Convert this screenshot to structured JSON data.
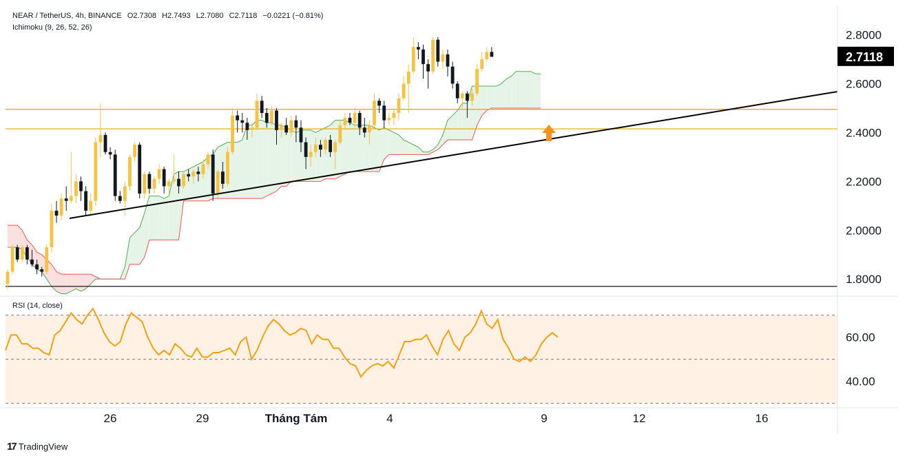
{
  "header": {
    "symbol": "NEAR / TetherUS, 4h, BINANCE",
    "open": "O2.7308",
    "high": "H2.7493",
    "low": "L2.7080",
    "close": "C2.7118",
    "change": "−0.0221 (−0.81%)",
    "indicator": "Ichimoku (9, 26, 52, 26)",
    "rsi_label": "RSI (14, close)"
  },
  "brand": {
    "logo": "17",
    "name": "TradingView"
  },
  "colors": {
    "up": "#f5c242",
    "down": "#131722",
    "leading_a": "#4caf50",
    "leading_b": "#ef5350",
    "cloud_green": "#e6f4e7",
    "cloud_red": "#fbe0e0",
    "hline": "#e0a500",
    "rsi": "#f5a00c",
    "rsi_band": "#fff1e3",
    "arrow": "#f7931a",
    "trend": "#000000",
    "price_tag_bg": "#000000",
    "price_tag_fg": "#ffffff"
  },
  "chart_data": {
    "type": "candlestick",
    "interval": "4h",
    "price_axis": {
      "ticks": [
        "2.8000",
        "2.6000",
        "2.4000",
        "2.2000",
        "2.0000",
        "1.8000"
      ],
      "ylim": [
        1.73,
        2.92
      ]
    },
    "last_price": "2.7118",
    "time_axis": [
      "26",
      "29",
      "Tháng Tám",
      "4",
      "9",
      "12",
      "16"
    ],
    "horizontal_levels": [
      2.495,
      2.415,
      1.77
    ],
    "trendline": {
      "from": [
        "Jul 24 12:00",
        2.0
      ],
      "to": [
        "Aug 18 16:00",
        2.545
      ]
    },
    "signal_arrow": {
      "time": "Aug 9 04:00",
      "price": 2.37,
      "direction": "up"
    },
    "candles_ohlc": [
      [
        1.78,
        1.84,
        1.76,
        1.83
      ],
      [
        1.83,
        1.94,
        1.82,
        1.93
      ],
      [
        1.93,
        1.94,
        1.87,
        1.88
      ],
      [
        1.88,
        1.94,
        1.87,
        1.93
      ],
      [
        1.93,
        1.94,
        1.86,
        1.88
      ],
      [
        1.88,
        1.92,
        1.85,
        1.86
      ],
      [
        1.86,
        1.88,
        1.82,
        1.84
      ],
      [
        1.84,
        1.85,
        1.81,
        1.83
      ],
      [
        1.83,
        1.94,
        1.82,
        1.93
      ],
      [
        1.93,
        2.11,
        1.91,
        2.08
      ],
      [
        2.08,
        2.12,
        2.03,
        2.06
      ],
      [
        2.06,
        2.15,
        2.04,
        2.13
      ],
      [
        2.13,
        2.18,
        2.08,
        2.12
      ],
      [
        2.12,
        2.32,
        2.11,
        2.14
      ],
      [
        2.14,
        2.23,
        2.11,
        2.2
      ],
      [
        2.2,
        2.22,
        2.12,
        2.16
      ],
      [
        2.16,
        2.18,
        2.06,
        2.08
      ],
      [
        2.08,
        2.15,
        2.06,
        2.12
      ],
      [
        2.12,
        2.38,
        2.1,
        2.36
      ],
      [
        2.36,
        2.52,
        2.3,
        2.39
      ],
      [
        2.39,
        2.4,
        2.31,
        2.32
      ],
      [
        2.32,
        2.34,
        2.29,
        2.31
      ],
      [
        2.31,
        2.33,
        2.12,
        2.14
      ],
      [
        2.14,
        2.16,
        2.11,
        2.12
      ],
      [
        2.12,
        2.2,
        2.06,
        2.18
      ],
      [
        2.18,
        2.31,
        2.16,
        2.3
      ],
      [
        2.3,
        2.36,
        2.28,
        2.35
      ],
      [
        2.35,
        2.36,
        2.13,
        2.15
      ],
      [
        2.15,
        2.24,
        2.13,
        2.23
      ],
      [
        2.23,
        2.24,
        2.15,
        2.17
      ],
      [
        2.17,
        2.22,
        2.15,
        2.21
      ],
      [
        2.21,
        2.27,
        2.19,
        2.25
      ],
      [
        2.25,
        2.26,
        2.15,
        2.18
      ],
      [
        2.18,
        2.21,
        2.14,
        2.2
      ],
      [
        2.2,
        2.31,
        2.19,
        2.21
      ],
      [
        2.21,
        2.24,
        2.15,
        2.18
      ],
      [
        2.18,
        2.24,
        2.17,
        2.23
      ],
      [
        2.23,
        2.25,
        2.2,
        2.22
      ],
      [
        2.22,
        2.25,
        2.19,
        2.24
      ],
      [
        2.24,
        2.26,
        2.2,
        2.23
      ],
      [
        2.23,
        2.29,
        2.21,
        2.27
      ],
      [
        2.27,
        2.32,
        2.25,
        2.31
      ],
      [
        2.31,
        2.33,
        2.12,
        2.15
      ],
      [
        2.15,
        2.25,
        2.13,
        2.24
      ],
      [
        2.24,
        2.28,
        2.17,
        2.19
      ],
      [
        2.19,
        2.34,
        2.18,
        2.32
      ],
      [
        2.32,
        2.5,
        2.31,
        2.47
      ],
      [
        2.47,
        2.49,
        2.4,
        2.45
      ],
      [
        2.45,
        2.48,
        2.4,
        2.44
      ],
      [
        2.44,
        2.46,
        2.37,
        2.41
      ],
      [
        2.41,
        2.44,
        2.38,
        2.42
      ],
      [
        2.42,
        2.56,
        2.41,
        2.53
      ],
      [
        2.53,
        2.55,
        2.46,
        2.48
      ],
      [
        2.48,
        2.5,
        2.42,
        2.44
      ],
      [
        2.44,
        2.51,
        2.43,
        2.49
      ],
      [
        2.49,
        2.5,
        2.35,
        2.41
      ],
      [
        2.41,
        2.44,
        2.38,
        2.43
      ],
      [
        2.43,
        2.46,
        2.39,
        2.4
      ],
      [
        2.4,
        2.47,
        2.38,
        2.45
      ],
      [
        2.45,
        2.47,
        2.36,
        2.42
      ],
      [
        2.42,
        2.45,
        2.32,
        2.36
      ],
      [
        2.36,
        2.38,
        2.25,
        2.3
      ],
      [
        2.3,
        2.35,
        2.26,
        2.32
      ],
      [
        2.32,
        2.38,
        2.3,
        2.35
      ],
      [
        2.35,
        2.37,
        2.3,
        2.33
      ],
      [
        2.33,
        2.38,
        2.31,
        2.37
      ],
      [
        2.37,
        2.39,
        2.3,
        2.32
      ],
      [
        2.32,
        2.37,
        2.25,
        2.36
      ],
      [
        2.36,
        2.45,
        2.35,
        2.43
      ],
      [
        2.43,
        2.48,
        2.41,
        2.46
      ],
      [
        2.46,
        2.48,
        2.43,
        2.44
      ],
      [
        2.44,
        2.5,
        2.42,
        2.48
      ],
      [
        2.48,
        2.49,
        2.39,
        2.42
      ],
      [
        2.42,
        2.46,
        2.38,
        2.4
      ],
      [
        2.4,
        2.45,
        2.35,
        2.43
      ],
      [
        2.43,
        2.56,
        2.42,
        2.53
      ],
      [
        2.53,
        2.54,
        2.48,
        2.51
      ],
      [
        2.51,
        2.53,
        2.42,
        2.45
      ],
      [
        2.45,
        2.48,
        2.43,
        2.46
      ],
      [
        2.46,
        2.5,
        2.43,
        2.48
      ],
      [
        2.48,
        2.56,
        2.45,
        2.54
      ],
      [
        2.54,
        2.63,
        2.53,
        2.6
      ],
      [
        2.6,
        2.68,
        2.48,
        2.65
      ],
      [
        2.65,
        2.79,
        2.64,
        2.75
      ],
      [
        2.75,
        2.77,
        2.7,
        2.74
      ],
      [
        2.74,
        2.76,
        2.62,
        2.68
      ],
      [
        2.68,
        2.7,
        2.58,
        2.65
      ],
      [
        2.65,
        2.79,
        2.64,
        2.78
      ],
      [
        2.78,
        2.79,
        2.67,
        2.69
      ],
      [
        2.69,
        2.74,
        2.66,
        2.72
      ],
      [
        2.72,
        2.74,
        2.63,
        2.67
      ],
      [
        2.67,
        2.69,
        2.58,
        2.6
      ],
      [
        2.6,
        2.61,
        2.52,
        2.54
      ],
      [
        2.54,
        2.57,
        2.5,
        2.56
      ],
      [
        2.56,
        2.57,
        2.46,
        2.53
      ],
      [
        2.53,
        2.58,
        2.51,
        2.56
      ],
      [
        2.56,
        2.68,
        2.55,
        2.66
      ],
      [
        2.66,
        2.73,
        2.65,
        2.7
      ],
      [
        2.7,
        2.75,
        2.69,
        2.73
      ],
      [
        2.73,
        2.75,
        2.71,
        2.71
      ]
    ],
    "ichimoku": {
      "leading_span_a": [
        1.93,
        1.93,
        1.93,
        1.92,
        1.89,
        1.86,
        1.84,
        1.83,
        1.8,
        1.77,
        1.75,
        1.74,
        1.74,
        1.75,
        1.76,
        1.75,
        1.76,
        1.78,
        1.8,
        1.8,
        1.8,
        1.8,
        1.8,
        1.8,
        1.85,
        1.97,
        1.99,
        2.01,
        2.07,
        2.14,
        2.14,
        2.14,
        2.13,
        2.14,
        2.23,
        2.24,
        2.24,
        2.25,
        2.26,
        2.27,
        2.28,
        2.3,
        2.31,
        2.34,
        2.35,
        2.36,
        2.36,
        2.36,
        2.37,
        2.43,
        2.43,
        2.45,
        2.45,
        2.44,
        2.44,
        2.43,
        2.43,
        2.42,
        2.41,
        2.4,
        2.41,
        2.41,
        2.41,
        2.4,
        2.41,
        2.42,
        2.43,
        2.45,
        2.45,
        2.45,
        2.44,
        2.43,
        2.43,
        2.43,
        2.43,
        2.42,
        2.41,
        2.42,
        2.41,
        2.4,
        2.39,
        2.37,
        2.36,
        2.35,
        2.34,
        2.32,
        2.32,
        2.33,
        2.35,
        2.39,
        2.45,
        2.47,
        2.49,
        2.52,
        2.52,
        2.59,
        2.59,
        2.59,
        2.59,
        2.59,
        2.59,
        2.6,
        2.62,
        2.63,
        2.65,
        2.65,
        2.65,
        2.65,
        2.64,
        2.64
      ],
      "leading_span_b": [
        2.02,
        2.02,
        2.02,
        2.0,
        1.96,
        1.94,
        1.91,
        1.9,
        1.88,
        1.86,
        1.83,
        1.82,
        1.82,
        1.82,
        1.82,
        1.82,
        1.82,
        1.82,
        1.81,
        1.8,
        1.8,
        1.8,
        1.8,
        1.8,
        1.8,
        1.86,
        1.86,
        1.86,
        1.89,
        1.96,
        1.96,
        1.96,
        1.96,
        1.96,
        1.96,
        1.96,
        2.12,
        2.12,
        2.12,
        2.12,
        2.12,
        2.12,
        2.13,
        2.13,
        2.13,
        2.13,
        2.13,
        2.13,
        2.13,
        2.13,
        2.13,
        2.13,
        2.13,
        2.14,
        2.15,
        2.16,
        2.18,
        2.18,
        2.2,
        2.2,
        2.2,
        2.2,
        2.2,
        2.2,
        2.2,
        2.21,
        2.21,
        2.21,
        2.22,
        2.23,
        2.24,
        2.24,
        2.24,
        2.24,
        2.24,
        2.24,
        2.24,
        2.29,
        2.31,
        2.31,
        2.31,
        2.31,
        2.31,
        2.31,
        2.31,
        2.31,
        2.31,
        2.32,
        2.33,
        2.35,
        2.37,
        2.37,
        2.37,
        2.37,
        2.37,
        2.37,
        2.43,
        2.47,
        2.49,
        2.5,
        2.5,
        2.5,
        2.5,
        2.5,
        2.5,
        2.5,
        2.5,
        2.5,
        2.5,
        2.5
      ]
    },
    "rsi": {
      "ticks": [
        "60.00",
        "40.00"
      ],
      "band": [
        30,
        70
      ],
      "mid": 50,
      "ylim": [
        28,
        78
      ],
      "values": [
        54,
        61,
        61,
        57,
        57,
        55,
        55,
        53,
        52,
        61,
        63,
        67,
        71,
        68,
        66,
        70,
        73,
        68,
        62,
        58,
        56,
        58,
        66,
        71,
        69,
        67,
        60,
        55,
        52,
        54,
        52,
        57,
        55,
        52,
        51,
        55,
        51,
        51,
        53,
        53,
        54,
        55,
        52,
        58,
        60,
        50,
        54,
        60,
        65,
        68,
        66,
        63,
        61,
        62,
        64,
        63,
        57,
        61,
        59,
        59,
        55,
        55,
        51,
        48,
        47,
        42,
        45,
        47,
        48,
        47,
        49,
        46,
        52,
        58,
        58,
        59,
        59,
        61,
        56,
        52,
        59,
        63,
        57,
        54,
        60,
        62,
        66,
        72,
        66,
        64,
        68,
        59,
        55,
        50,
        49,
        51,
        49,
        52,
        57,
        60,
        62,
        60
      ]
    }
  }
}
